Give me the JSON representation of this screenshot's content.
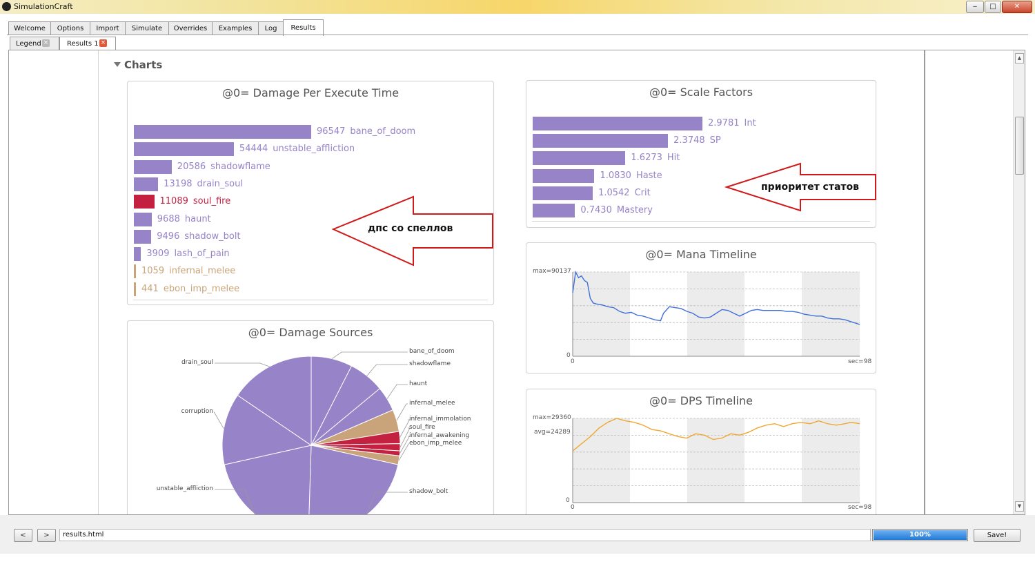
{
  "window": {
    "title": "SimulationCraft",
    "controls": {
      "minimize": "‒",
      "maximize": "□",
      "close": "✕"
    }
  },
  "main_tabs": [
    "Welcome",
    "Options",
    "Import",
    "Simulate",
    "Overrides",
    "Examples",
    "Log",
    "Results"
  ],
  "active_main_tab": "Results",
  "sub_tabs": [
    "Legend",
    "Results 1"
  ],
  "active_sub_tab": "Results 1",
  "section_heading": "Charts",
  "colors": {
    "bar": "#9683c8",
    "highlight": "#c42141",
    "melee": "#c9a47a",
    "mana_line": "#3f6fd9",
    "dps_line": "#f0a830",
    "annotation_border": "#d01a1a"
  },
  "annotations": {
    "dps_arrow": "дпс со спеллов",
    "stats_arrow": "приоритет статов"
  },
  "chart_data": [
    {
      "type": "bar",
      "orientation": "horizontal",
      "title": "@0= Damage Per Execute Time",
      "categories": [
        "bane_of_doom",
        "unstable_affliction",
        "shadowflame",
        "drain_soul",
        "soul_fire",
        "haunt",
        "shadow_bolt",
        "lash_of_pain",
        "infernal_melee",
        "ebon_imp_melee"
      ],
      "values": [
        96547,
        54444,
        20586,
        13198,
        11089,
        9688,
        9496,
        3909,
        1059,
        441
      ],
      "bar_colors": [
        "#9683c8",
        "#9683c8",
        "#9683c8",
        "#9683c8",
        "#c42141",
        "#9683c8",
        "#9683c8",
        "#9683c8",
        "#c9a47a",
        "#c9a47a"
      ]
    },
    {
      "type": "bar",
      "orientation": "horizontal",
      "title": "@0= Scale Factors",
      "categories": [
        "Int",
        "SP",
        "Hit",
        "Haste",
        "Crit",
        "Mastery"
      ],
      "values": [
        "2.9781",
        "2.3748",
        "1.6273",
        "1.0830",
        "1.0542",
        "0.7430"
      ]
    },
    {
      "type": "pie",
      "title": "@0= Damage Sources",
      "labels": [
        "bane_of_doom",
        "shadowflame",
        "haunt",
        "infernal_melee",
        "infernal_immolation",
        "soul_fire",
        "infernal_awakening",
        "ebon_imp_melee",
        "shadow_bolt",
        "unstable_affliction",
        "corruption",
        "drain_soul"
      ],
      "values": [
        7.5,
        6.5,
        4.5,
        4.0,
        2.2,
        1.3,
        0.9,
        1.6,
        22,
        21,
        13,
        15.5
      ],
      "slice_colors": [
        "#9683c8",
        "#9683c8",
        "#9683c8",
        "#c9a47a",
        "#c42141",
        "#c42141",
        "#c42141",
        "#c9a47a",
        "#9683c8",
        "#9683c8",
        "#9683c8",
        "#9683c8"
      ]
    },
    {
      "type": "line",
      "title": "@0= Mana Timeline",
      "y_max_label": "max=90137",
      "y_zero_label": "0",
      "x_start_label": "0",
      "x_end_label": "sec=98",
      "ylim": [
        0,
        90137
      ],
      "xlim": [
        0,
        98
      ],
      "x": [
        0,
        1,
        2,
        3,
        4,
        5,
        6,
        7,
        8,
        10,
        12,
        14,
        16,
        18,
        20,
        22,
        24,
        26,
        28,
        30,
        31,
        33,
        35,
        37,
        39,
        41,
        43,
        45,
        47,
        49,
        51,
        53,
        55,
        57,
        59,
        61,
        63,
        65,
        67,
        69,
        71,
        73,
        75,
        77,
        79,
        81,
        83,
        85,
        87,
        89,
        91,
        93,
        95,
        98
      ],
      "y": [
        68000,
        90137,
        84000,
        86000,
        81000,
        79000,
        62000,
        57000,
        56000,
        55000,
        53000,
        52000,
        48000,
        46000,
        47000,
        44000,
        43000,
        41000,
        39000,
        38000,
        46000,
        53000,
        52000,
        51000,
        48000,
        46000,
        42000,
        41000,
        42000,
        46000,
        50000,
        49000,
        46000,
        43000,
        46000,
        49000,
        50000,
        49000,
        49000,
        49000,
        49000,
        48000,
        48000,
        47000,
        45000,
        44000,
        43000,
        43000,
        41000,
        40000,
        40000,
        39000,
        37000,
        34000
      ]
    },
    {
      "type": "line",
      "title": "@0= DPS Timeline",
      "y_max_label": "max=29360",
      "y_avg_label": "avg=24289",
      "y_zero_label": "0",
      "x_start_label": "0",
      "x_end_label": "sec=98",
      "ylim": [
        0,
        29360
      ],
      "xlim": [
        0,
        98
      ],
      "x": [
        0,
        3,
        6,
        9,
        12,
        15,
        18,
        21,
        24,
        27,
        30,
        33,
        36,
        39,
        42,
        45,
        48,
        51,
        54,
        57,
        60,
        63,
        66,
        69,
        72,
        75,
        78,
        81,
        84,
        87,
        90,
        93,
        95,
        98
      ],
      "y": [
        18000,
        20500,
        23000,
        26000,
        28000,
        29360,
        28500,
        28000,
        27000,
        25500,
        25000,
        24000,
        23000,
        22500,
        24000,
        23500,
        22000,
        22500,
        24000,
        23500,
        24500,
        26000,
        27000,
        27500,
        26500,
        27500,
        28000,
        27500,
        28500,
        27500,
        27000,
        27500,
        28000,
        27500
      ]
    }
  ],
  "bottom": {
    "back_label": "<",
    "forward_label": ">",
    "url": "results.html",
    "progress_text": "100%",
    "progress": 1.0,
    "save_label": "Save!"
  }
}
